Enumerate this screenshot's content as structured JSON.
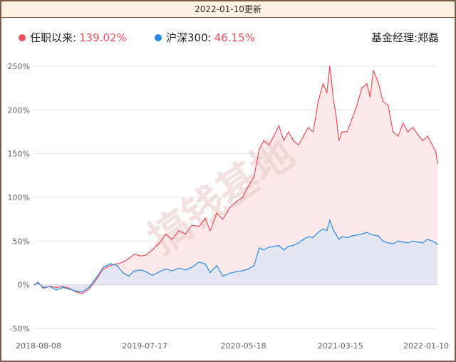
{
  "update_date": "2022-01-10更新",
  "legend": [
    {
      "name": "任职以来:",
      "value": "139.02%",
      "color": "#e8505b"
    },
    {
      "name": "沪深300:",
      "value": "46.15%",
      "color": "#2a8ae8"
    }
  ],
  "manager": "基金经理:郑磊",
  "watermark": "搞钱基地",
  "chart_data": {
    "type": "area",
    "yticks": [
      "250%",
      "200%",
      "150%",
      "100%",
      "50%",
      "0%",
      "-50%"
    ],
    "ylim": [
      -50,
      250
    ],
    "xticks": [
      "2018-08-08",
      "2019-07-17",
      "2020-05-18",
      "2021-03-15",
      "2022-01-10"
    ],
    "x_range": [
      "2018-08-08",
      "2022-01-10"
    ],
    "grid": true,
    "legend_position": "top",
    "series": [
      {
        "name": "任职以来",
        "color": "#e8505b",
        "fill": "#fde7e7",
        "points": [
          [
            "2018-08-08",
            0
          ],
          [
            "2018-08-20",
            2
          ],
          [
            "2018-09-05",
            -3
          ],
          [
            "2018-09-25",
            -2
          ],
          [
            "2018-10-15",
            -3
          ],
          [
            "2018-11-05",
            -2
          ],
          [
            "2018-11-25",
            -4
          ],
          [
            "2018-12-15",
            -8
          ],
          [
            "2019-01-04",
            -10
          ],
          [
            "2019-01-25",
            -5
          ],
          [
            "2019-02-20",
            8
          ],
          [
            "2019-03-10",
            18
          ],
          [
            "2019-04-01",
            22
          ],
          [
            "2019-04-22",
            24
          ],
          [
            "2019-05-10",
            26
          ],
          [
            "2019-05-28",
            30
          ],
          [
            "2019-06-15",
            35
          ],
          [
            "2019-07-05",
            33
          ],
          [
            "2019-07-20",
            34
          ],
          [
            "2019-08-10",
            40
          ],
          [
            "2019-09-01",
            48
          ],
          [
            "2019-09-20",
            58
          ],
          [
            "2019-10-10",
            52
          ],
          [
            "2019-10-30",
            62
          ],
          [
            "2019-11-20",
            58
          ],
          [
            "2019-12-10",
            68
          ],
          [
            "2020-01-02",
            67
          ],
          [
            "2020-01-20",
            76
          ],
          [
            "2020-02-05",
            62
          ],
          [
            "2020-02-25",
            82
          ],
          [
            "2020-03-15",
            75
          ],
          [
            "2020-04-05",
            88
          ],
          [
            "2020-04-25",
            95
          ],
          [
            "2020-05-15",
            100
          ],
          [
            "2020-06-01",
            112
          ],
          [
            "2020-06-20",
            124
          ],
          [
            "2020-07-06",
            155
          ],
          [
            "2020-07-20",
            165
          ],
          [
            "2020-08-05",
            160
          ],
          [
            "2020-08-20",
            170
          ],
          [
            "2020-09-05",
            182
          ],
          [
            "2020-09-20",
            165
          ],
          [
            "2020-10-05",
            175
          ],
          [
            "2020-10-20",
            165
          ],
          [
            "2020-11-05",
            160
          ],
          [
            "2020-11-20",
            170
          ],
          [
            "2020-12-05",
            180
          ],
          [
            "2020-12-20",
            175
          ],
          [
            "2021-01-05",
            210
          ],
          [
            "2021-01-20",
            230
          ],
          [
            "2021-02-01",
            220
          ],
          [
            "2021-02-10",
            250
          ],
          [
            "2021-02-22",
            210
          ],
          [
            "2021-03-01",
            195
          ],
          [
            "2021-03-10",
            165
          ],
          [
            "2021-03-20",
            175
          ],
          [
            "2021-04-05",
            175
          ],
          [
            "2021-04-20",
            190
          ],
          [
            "2021-05-05",
            205
          ],
          [
            "2021-05-20",
            225
          ],
          [
            "2021-06-05",
            230
          ],
          [
            "2021-06-15",
            215
          ],
          [
            "2021-06-25",
            245
          ],
          [
            "2021-07-10",
            232
          ],
          [
            "2021-07-25",
            210
          ],
          [
            "2021-08-10",
            205
          ],
          [
            "2021-08-25",
            175
          ],
          [
            "2021-09-10",
            170
          ],
          [
            "2021-09-25",
            185
          ],
          [
            "2021-10-10",
            175
          ],
          [
            "2021-10-25",
            180
          ],
          [
            "2021-11-10",
            172
          ],
          [
            "2021-11-25",
            165
          ],
          [
            "2021-12-10",
            170
          ],
          [
            "2021-12-25",
            160
          ],
          [
            "2022-01-05",
            152
          ],
          [
            "2022-01-10",
            139.02
          ]
        ]
      },
      {
        "name": "沪深300",
        "color": "#2a8ae8",
        "fill": "#e3e6f3",
        "points": [
          [
            "2018-08-08",
            0
          ],
          [
            "2018-08-20",
            3
          ],
          [
            "2018-09-05",
            -4
          ],
          [
            "2018-09-25",
            -2
          ],
          [
            "2018-10-15",
            -6
          ],
          [
            "2018-11-05",
            -3
          ],
          [
            "2018-11-25",
            -5
          ],
          [
            "2018-12-15",
            -7
          ],
          [
            "2019-01-04",
            -8
          ],
          [
            "2019-01-25",
            -3
          ],
          [
            "2019-02-20",
            10
          ],
          [
            "2019-03-10",
            20
          ],
          [
            "2019-04-01",
            24
          ],
          [
            "2019-04-22",
            22
          ],
          [
            "2019-05-10",
            14
          ],
          [
            "2019-05-28",
            10
          ],
          [
            "2019-06-15",
            16
          ],
          [
            "2019-07-05",
            17
          ],
          [
            "2019-07-20",
            15
          ],
          [
            "2019-08-10",
            11
          ],
          [
            "2019-09-01",
            15
          ],
          [
            "2019-09-20",
            18
          ],
          [
            "2019-10-10",
            16
          ],
          [
            "2019-10-30",
            19
          ],
          [
            "2019-11-20",
            17
          ],
          [
            "2019-12-10",
            20
          ],
          [
            "2020-01-02",
            26
          ],
          [
            "2020-01-20",
            24
          ],
          [
            "2020-02-05",
            14
          ],
          [
            "2020-02-25",
            22
          ],
          [
            "2020-03-15",
            10
          ],
          [
            "2020-04-05",
            13
          ],
          [
            "2020-04-25",
            15
          ],
          [
            "2020-05-15",
            16
          ],
          [
            "2020-06-01",
            18
          ],
          [
            "2020-06-20",
            22
          ],
          [
            "2020-07-06",
            42
          ],
          [
            "2020-07-20",
            40
          ],
          [
            "2020-08-05",
            43
          ],
          [
            "2020-08-20",
            44
          ],
          [
            "2020-09-05",
            45
          ],
          [
            "2020-09-20",
            40
          ],
          [
            "2020-10-05",
            44
          ],
          [
            "2020-10-20",
            45
          ],
          [
            "2020-11-05",
            48
          ],
          [
            "2020-11-20",
            52
          ],
          [
            "2020-12-05",
            55
          ],
          [
            "2020-12-20",
            54
          ],
          [
            "2021-01-05",
            60
          ],
          [
            "2021-01-20",
            64
          ],
          [
            "2021-02-01",
            62
          ],
          [
            "2021-02-10",
            74
          ],
          [
            "2021-02-22",
            62
          ],
          [
            "2021-03-01",
            58
          ],
          [
            "2021-03-10",
            52
          ],
          [
            "2021-03-20",
            55
          ],
          [
            "2021-04-05",
            54
          ],
          [
            "2021-04-20",
            56
          ],
          [
            "2021-05-05",
            57
          ],
          [
            "2021-05-20",
            58
          ],
          [
            "2021-06-05",
            60
          ],
          [
            "2021-06-15",
            58
          ],
          [
            "2021-06-25",
            57
          ],
          [
            "2021-07-10",
            56
          ],
          [
            "2021-07-25",
            50
          ],
          [
            "2021-08-10",
            48
          ],
          [
            "2021-08-25",
            47
          ],
          [
            "2021-09-10",
            50
          ],
          [
            "2021-09-25",
            49
          ],
          [
            "2021-10-10",
            48
          ],
          [
            "2021-10-25",
            50
          ],
          [
            "2021-11-10",
            49
          ],
          [
            "2021-11-25",
            48
          ],
          [
            "2021-12-10",
            52
          ],
          [
            "2021-12-25",
            50
          ],
          [
            "2022-01-05",
            48
          ],
          [
            "2022-01-10",
            46.15
          ]
        ]
      }
    ]
  }
}
